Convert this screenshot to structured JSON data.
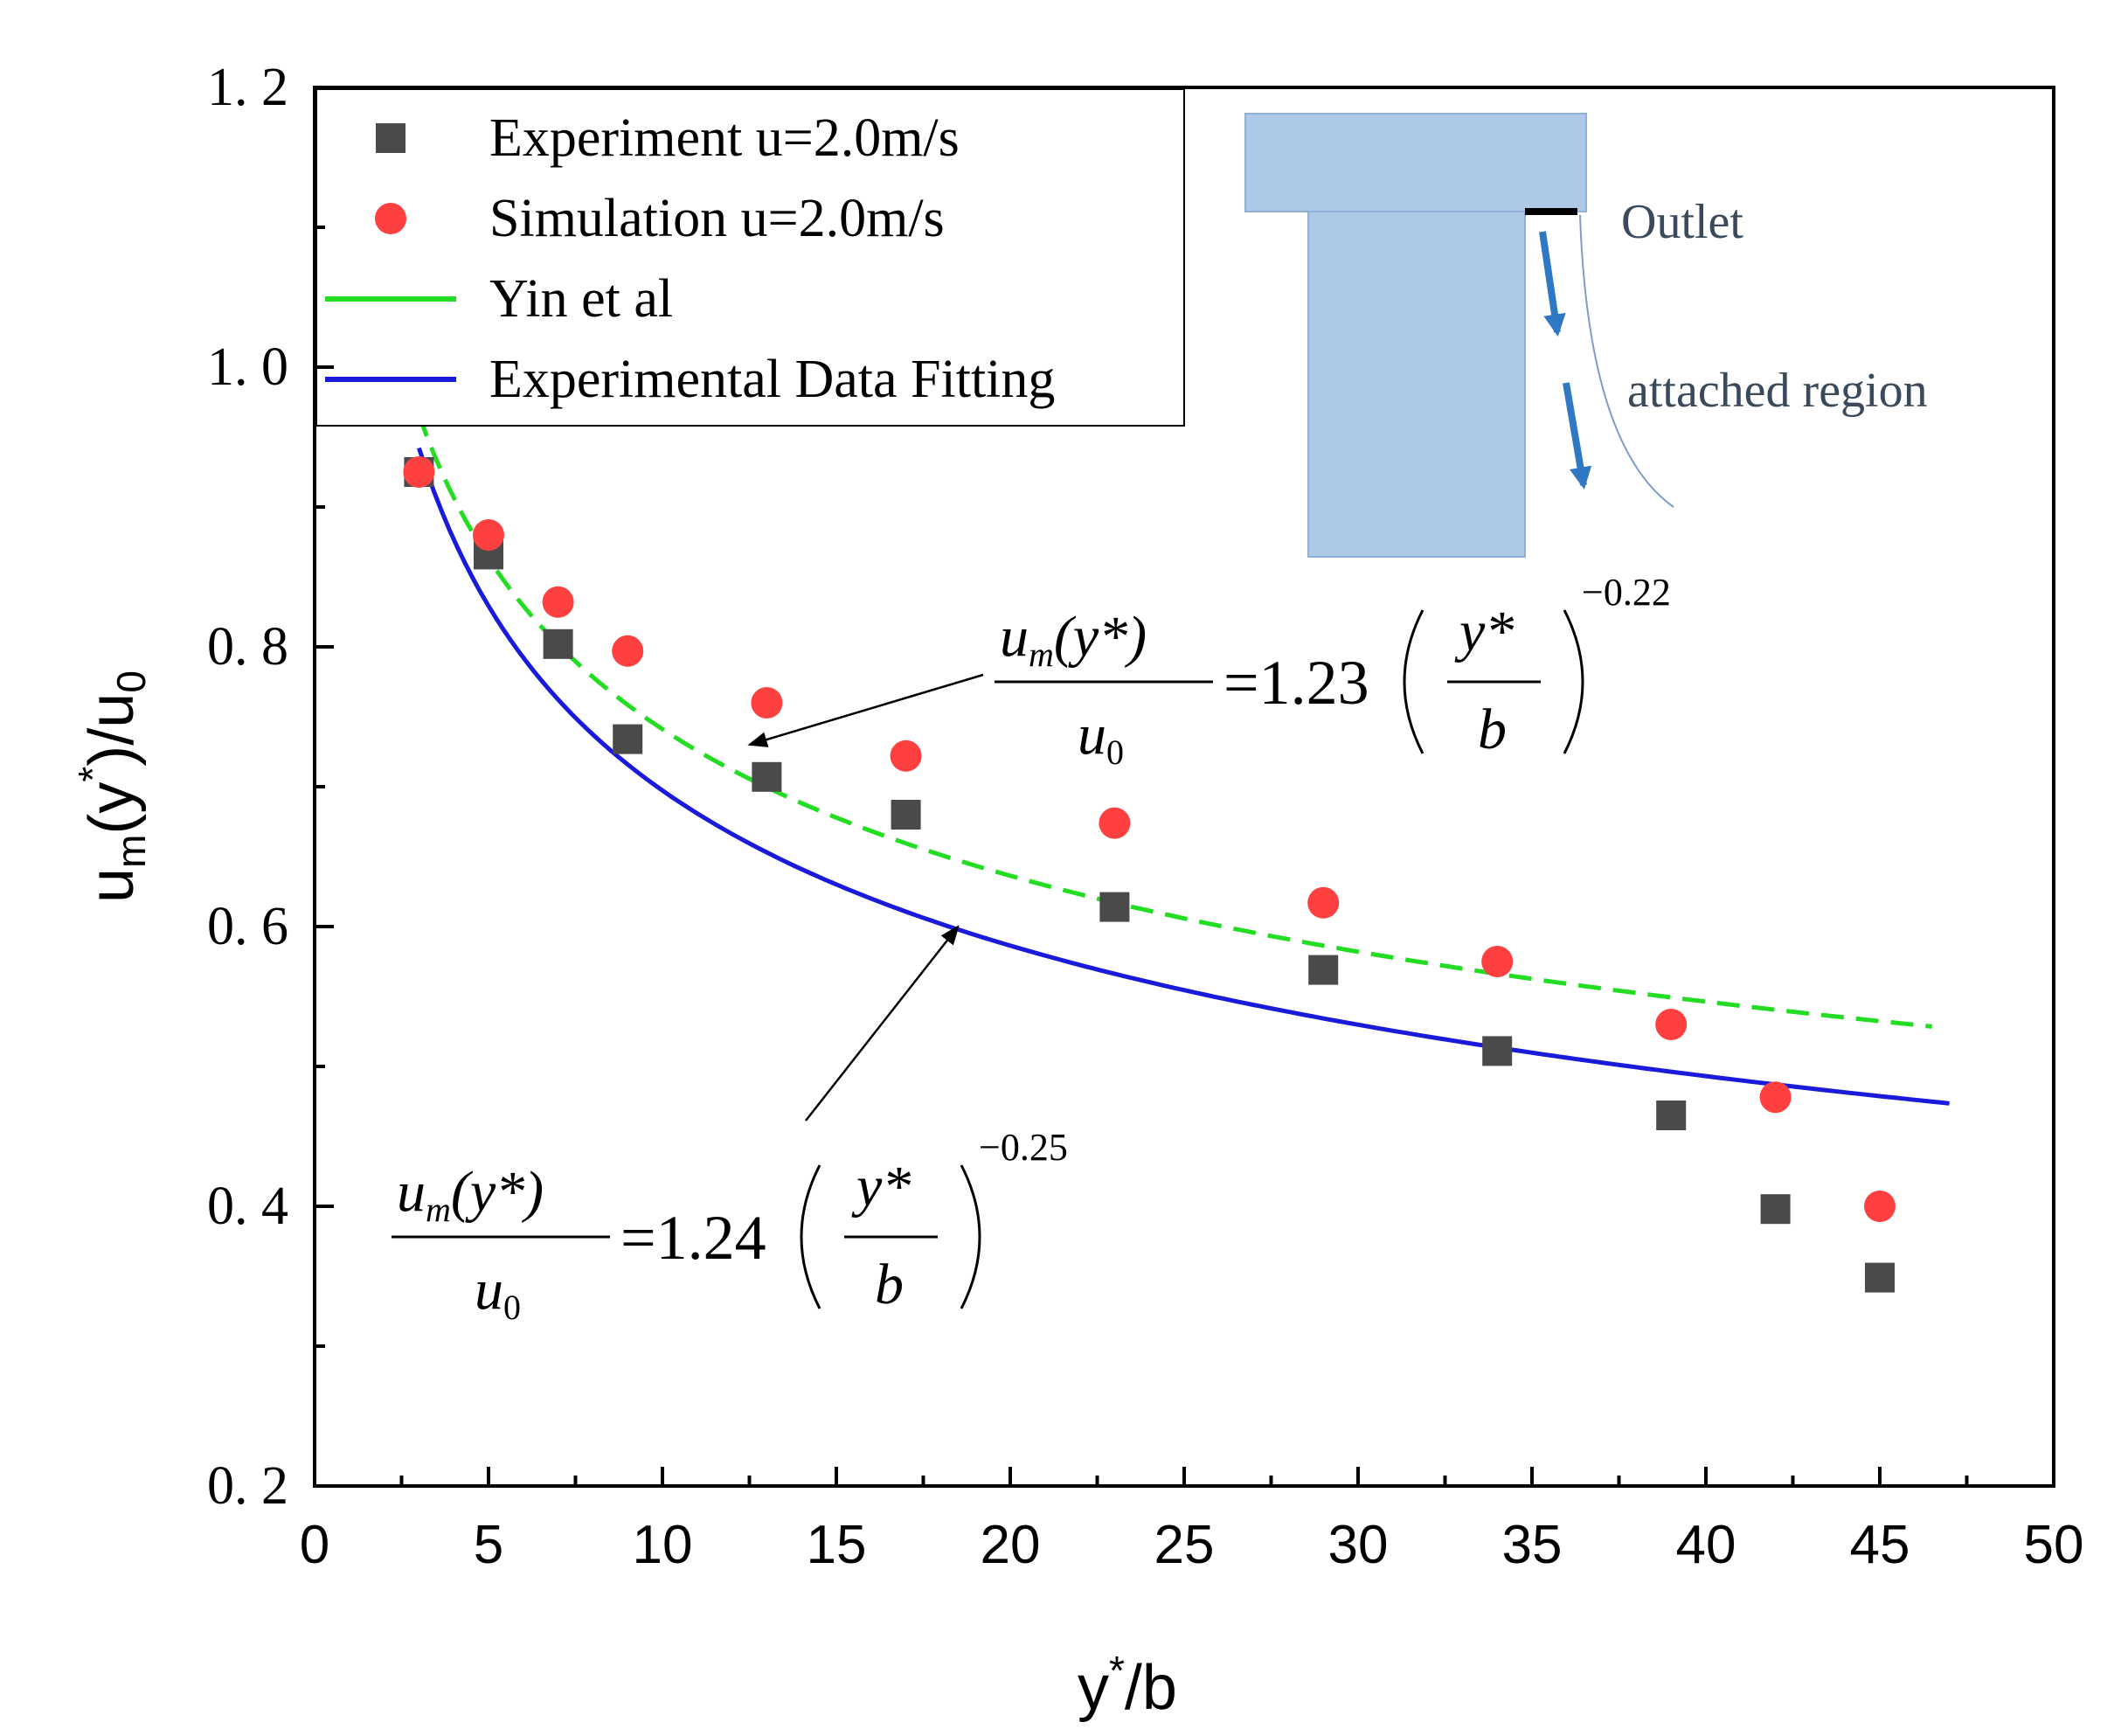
{
  "chart_data": {
    "type": "scatter",
    "title": "",
    "xlabel": {
      "base": "y",
      "sup": "*",
      "rest": "/b"
    },
    "ylabel": {
      "base": "u",
      "sub": "m",
      "open": "(y",
      "sup": "*",
      "close": ")/u",
      "sub2": "0"
    },
    "xlim": [
      0,
      50
    ],
    "ylim": [
      0.2,
      1.2
    ],
    "x_ticks": [
      0,
      5,
      10,
      15,
      20,
      25,
      30,
      35,
      40,
      45,
      50
    ],
    "x_tick_labels": [
      "0",
      "5",
      "10",
      "15",
      "20",
      "25",
      "30",
      "35",
      "40",
      "45",
      "50"
    ],
    "y_ticks": [
      0.2,
      0.4,
      0.6,
      0.8,
      1.0,
      1.2
    ],
    "y_tick_labels": [
      "0. 2",
      "0. 4",
      "0. 6",
      "0. 8",
      "1. 0",
      "1. 2"
    ],
    "series": [
      {
        "name": "Experiment u=2.0m/s",
        "kind": "scatter-square",
        "color": "#4a4a4a",
        "x": [
          3,
          5,
          7,
          9,
          13,
          17,
          23,
          29,
          34,
          39,
          42,
          45
        ],
        "y": [
          0.925,
          0.866,
          0.802,
          0.734,
          0.707,
          0.68,
          0.614,
          0.569,
          0.511,
          0.465,
          0.398,
          0.349
        ]
      },
      {
        "name": "Simulation u=2.0m/s",
        "kind": "scatter-circle",
        "color": "#ff4040",
        "x": [
          3,
          5,
          7,
          9,
          13,
          17,
          23,
          29,
          34,
          39,
          42,
          45
        ],
        "y": [
          0.925,
          0.88,
          0.832,
          0.797,
          0.76,
          0.722,
          0.674,
          0.617,
          0.575,
          0.53,
          0.478,
          0.4
        ]
      },
      {
        "name": "Yin et al",
        "kind": "line-dashed",
        "color": "#22dd22",
        "formula": {
          "coef": 1.23,
          "exp": -0.22
        },
        "x_range": [
          3,
          46.5
        ]
      },
      {
        "name": "Experimental Data Fitting",
        "kind": "line-solid",
        "color": "#1a1adb",
        "formula": {
          "coef": 1.24,
          "exp": -0.25
        },
        "x_range": [
          3,
          47
        ]
      }
    ],
    "legend": {
      "position": "top-left"
    },
    "annotations": [
      {
        "id": "eq-yin",
        "num": "u",
        "num_sub": "m",
        "num_rest": "(y*)",
        "den": "u",
        "den_sub": "0",
        "coef": "=1.23",
        "frac_num": "y*",
        "frac_den": "b",
        "exponent": "−0.22",
        "arrow_to": [
          12.5,
          0.73
        ]
      },
      {
        "id": "eq-fit",
        "num": "u",
        "num_sub": "m",
        "num_rest": "(y*)",
        "den": "u",
        "den_sub": "0",
        "coef": "=1.24",
        "frac_num": "y*",
        "frac_den": "b",
        "exponent": "−0.25",
        "arrow_to": [
          18.5,
          0.6
        ]
      }
    ],
    "inset": {
      "outlet_label": "Outlet",
      "region_label": "attached region",
      "block_color": "#aec8e8",
      "arrow_color": "#2f78c4"
    }
  }
}
